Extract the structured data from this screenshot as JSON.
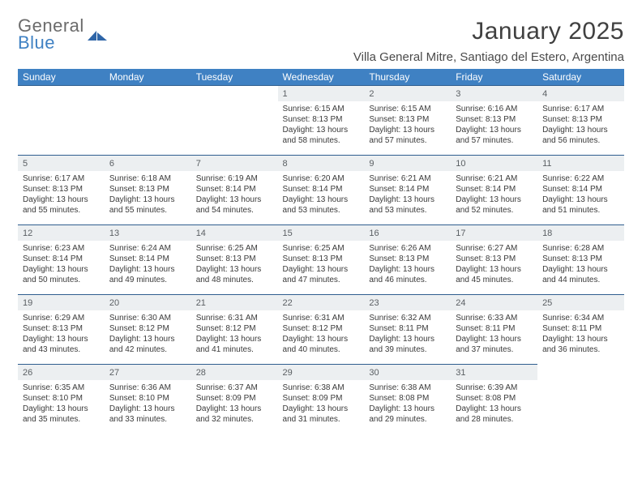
{
  "logo": {
    "top": "General",
    "bottom": "Blue",
    "shape_color": "#2f66a8"
  },
  "title": "January 2025",
  "location": "Villa General Mitre, Santiago del Estero, Argentina",
  "header_bg": "#3f81c3",
  "daynum_bg": "#eceff1",
  "border_color": "#2f5e8f",
  "weekdays": [
    "Sunday",
    "Monday",
    "Tuesday",
    "Wednesday",
    "Thursday",
    "Friday",
    "Saturday"
  ],
  "weeks": [
    [
      null,
      null,
      null,
      {
        "n": "1",
        "r": "6:15 AM",
        "s": "8:13 PM",
        "d": "13 hours and 58 minutes."
      },
      {
        "n": "2",
        "r": "6:15 AM",
        "s": "8:13 PM",
        "d": "13 hours and 57 minutes."
      },
      {
        "n": "3",
        "r": "6:16 AM",
        "s": "8:13 PM",
        "d": "13 hours and 57 minutes."
      },
      {
        "n": "4",
        "r": "6:17 AM",
        "s": "8:13 PM",
        "d": "13 hours and 56 minutes."
      }
    ],
    [
      {
        "n": "5",
        "r": "6:17 AM",
        "s": "8:13 PM",
        "d": "13 hours and 55 minutes."
      },
      {
        "n": "6",
        "r": "6:18 AM",
        "s": "8:13 PM",
        "d": "13 hours and 55 minutes."
      },
      {
        "n": "7",
        "r": "6:19 AM",
        "s": "8:14 PM",
        "d": "13 hours and 54 minutes."
      },
      {
        "n": "8",
        "r": "6:20 AM",
        "s": "8:14 PM",
        "d": "13 hours and 53 minutes."
      },
      {
        "n": "9",
        "r": "6:21 AM",
        "s": "8:14 PM",
        "d": "13 hours and 53 minutes."
      },
      {
        "n": "10",
        "r": "6:21 AM",
        "s": "8:14 PM",
        "d": "13 hours and 52 minutes."
      },
      {
        "n": "11",
        "r": "6:22 AM",
        "s": "8:14 PM",
        "d": "13 hours and 51 minutes."
      }
    ],
    [
      {
        "n": "12",
        "r": "6:23 AM",
        "s": "8:14 PM",
        "d": "13 hours and 50 minutes."
      },
      {
        "n": "13",
        "r": "6:24 AM",
        "s": "8:14 PM",
        "d": "13 hours and 49 minutes."
      },
      {
        "n": "14",
        "r": "6:25 AM",
        "s": "8:13 PM",
        "d": "13 hours and 48 minutes."
      },
      {
        "n": "15",
        "r": "6:25 AM",
        "s": "8:13 PM",
        "d": "13 hours and 47 minutes."
      },
      {
        "n": "16",
        "r": "6:26 AM",
        "s": "8:13 PM",
        "d": "13 hours and 46 minutes."
      },
      {
        "n": "17",
        "r": "6:27 AM",
        "s": "8:13 PM",
        "d": "13 hours and 45 minutes."
      },
      {
        "n": "18",
        "r": "6:28 AM",
        "s": "8:13 PM",
        "d": "13 hours and 44 minutes."
      }
    ],
    [
      {
        "n": "19",
        "r": "6:29 AM",
        "s": "8:13 PM",
        "d": "13 hours and 43 minutes."
      },
      {
        "n": "20",
        "r": "6:30 AM",
        "s": "8:12 PM",
        "d": "13 hours and 42 minutes."
      },
      {
        "n": "21",
        "r": "6:31 AM",
        "s": "8:12 PM",
        "d": "13 hours and 41 minutes."
      },
      {
        "n": "22",
        "r": "6:31 AM",
        "s": "8:12 PM",
        "d": "13 hours and 40 minutes."
      },
      {
        "n": "23",
        "r": "6:32 AM",
        "s": "8:11 PM",
        "d": "13 hours and 39 minutes."
      },
      {
        "n": "24",
        "r": "6:33 AM",
        "s": "8:11 PM",
        "d": "13 hours and 37 minutes."
      },
      {
        "n": "25",
        "r": "6:34 AM",
        "s": "8:11 PM",
        "d": "13 hours and 36 minutes."
      }
    ],
    [
      {
        "n": "26",
        "r": "6:35 AM",
        "s": "8:10 PM",
        "d": "13 hours and 35 minutes."
      },
      {
        "n": "27",
        "r": "6:36 AM",
        "s": "8:10 PM",
        "d": "13 hours and 33 minutes."
      },
      {
        "n": "28",
        "r": "6:37 AM",
        "s": "8:09 PM",
        "d": "13 hours and 32 minutes."
      },
      {
        "n": "29",
        "r": "6:38 AM",
        "s": "8:09 PM",
        "d": "13 hours and 31 minutes."
      },
      {
        "n": "30",
        "r": "6:38 AM",
        "s": "8:08 PM",
        "d": "13 hours and 29 minutes."
      },
      {
        "n": "31",
        "r": "6:39 AM",
        "s": "8:08 PM",
        "d": "13 hours and 28 minutes."
      },
      null
    ]
  ]
}
